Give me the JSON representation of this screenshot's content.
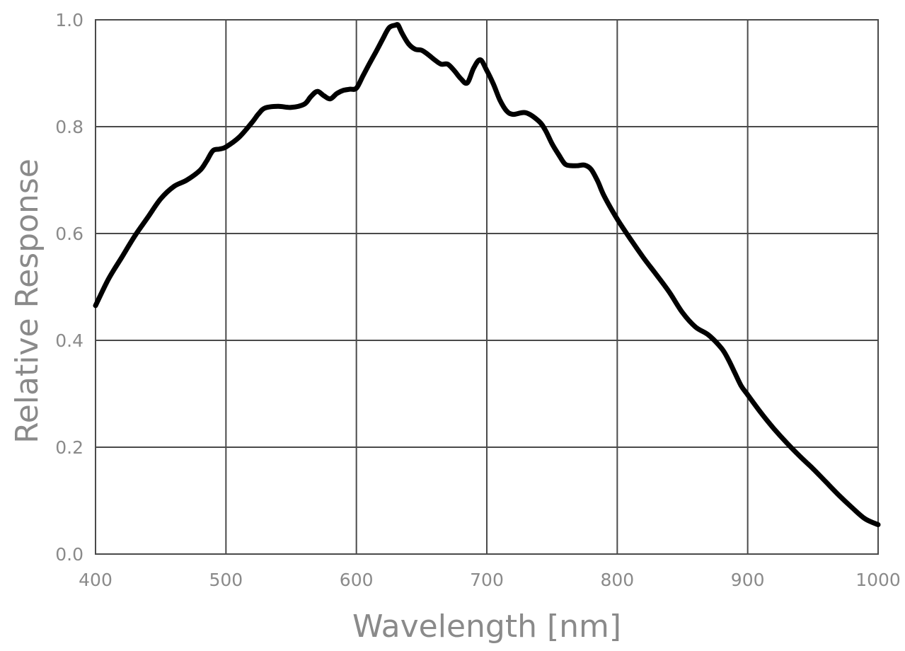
{
  "chart_data": {
    "type": "line",
    "title": "",
    "xlabel": "Wavelength [nm]",
    "ylabel": "Relative Response",
    "xlim": [
      400,
      1000
    ],
    "ylim": [
      0,
      1
    ],
    "x_ticks": [
      400,
      500,
      600,
      700,
      800,
      900,
      1000
    ],
    "x_tick_labels": [
      "400",
      "500",
      "600",
      "700",
      "800",
      "900",
      "1000"
    ],
    "y_ticks": [
      0,
      0.2,
      0.4,
      0.6,
      0.8,
      1.0
    ],
    "y_tick_labels": [
      "0.0",
      "0.2",
      "0.4",
      "0.6",
      "0.8",
      "1.0"
    ],
    "grid": true,
    "legend": "none",
    "line_color": "#000000",
    "grid_color": "#4a4a4a",
    "label_color": "#8a8a8a",
    "series": [
      {
        "x": [
          400,
          410,
          420,
          430,
          440,
          450,
          460,
          470,
          480,
          485,
          490,
          495,
          500,
          510,
          520,
          525,
          530,
          540,
          550,
          560,
          565,
          570,
          575,
          580,
          585,
          590,
          595,
          600,
          605,
          610,
          615,
          620,
          625,
          630,
          632,
          635,
          640,
          645,
          650,
          655,
          660,
          665,
          670,
          675,
          680,
          685,
          690,
          695,
          700,
          705,
          710,
          715,
          720,
          730,
          740,
          745,
          750,
          755,
          760,
          765,
          770,
          775,
          780,
          785,
          790,
          800,
          810,
          820,
          830,
          840,
          850,
          860,
          870,
          880,
          885,
          890,
          895,
          900,
          910,
          920,
          930,
          940,
          950,
          960,
          970,
          980,
          990,
          1000
        ],
        "y": [
          0.465,
          0.515,
          0.555,
          0.595,
          0.63,
          0.665,
          0.688,
          0.7,
          0.718,
          0.735,
          0.755,
          0.758,
          0.762,
          0.78,
          0.808,
          0.824,
          0.835,
          0.838,
          0.836,
          0.842,
          0.856,
          0.866,
          0.858,
          0.852,
          0.862,
          0.868,
          0.87,
          0.872,
          0.895,
          0.918,
          0.94,
          0.963,
          0.985,
          0.99,
          0.99,
          0.975,
          0.955,
          0.945,
          0.943,
          0.935,
          0.925,
          0.917,
          0.917,
          0.905,
          0.89,
          0.882,
          0.91,
          0.925,
          0.905,
          0.88,
          0.85,
          0.83,
          0.823,
          0.826,
          0.81,
          0.793,
          0.768,
          0.748,
          0.73,
          0.727,
          0.727,
          0.728,
          0.72,
          0.698,
          0.67,
          0.627,
          0.59,
          0.555,
          0.523,
          0.49,
          0.452,
          0.425,
          0.41,
          0.385,
          0.365,
          0.34,
          0.315,
          0.298,
          0.265,
          0.235,
          0.208,
          0.183,
          0.16,
          0.135,
          0.11,
          0.087,
          0.066,
          0.055
        ]
      }
    ]
  }
}
